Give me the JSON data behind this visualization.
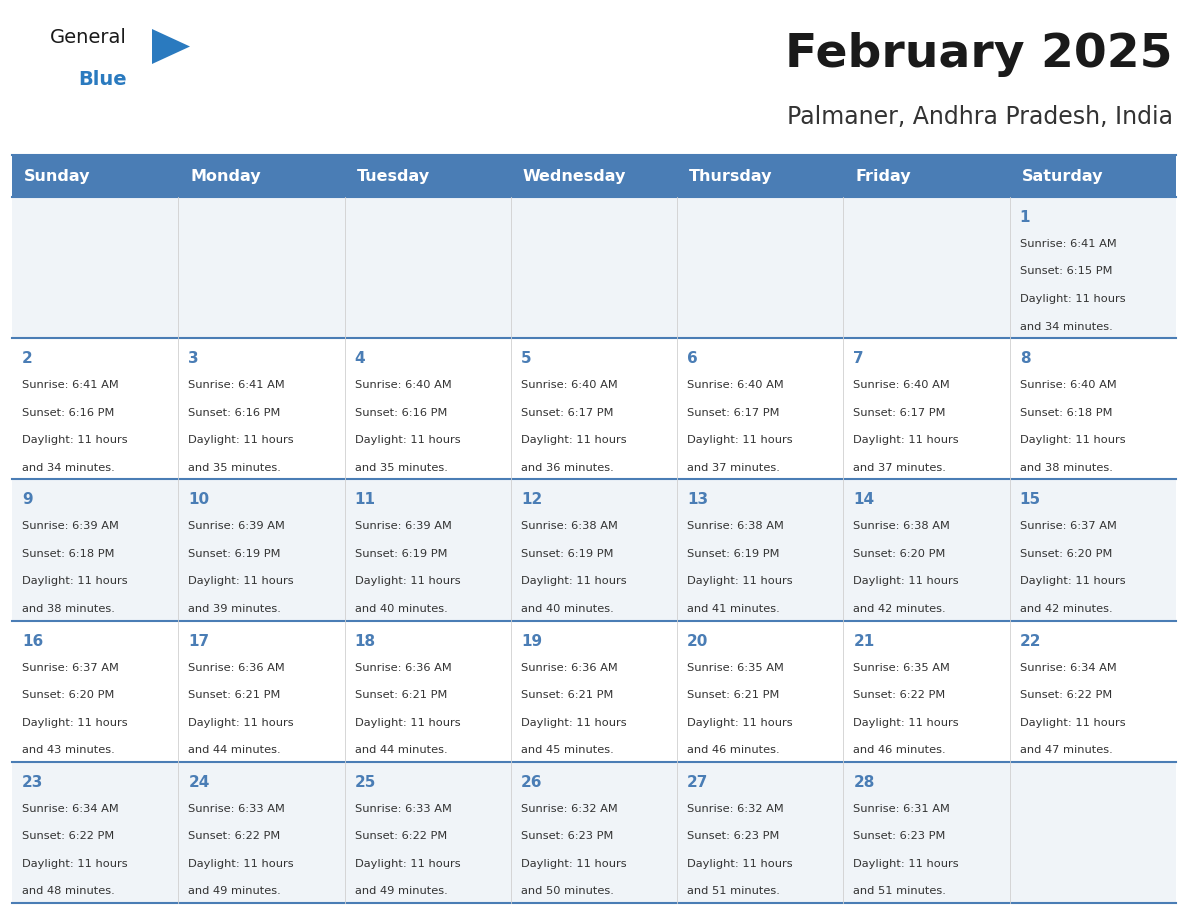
{
  "title": "February 2025",
  "subtitle": "Palmaner, Andhra Pradesh, India",
  "days_of_week": [
    "Sunday",
    "Monday",
    "Tuesday",
    "Wednesday",
    "Thursday",
    "Friday",
    "Saturday"
  ],
  "header_bg": "#4a7db5",
  "header_text": "#ffffff",
  "row_bg_light": "#f0f4f8",
  "row_bg_white": "#ffffff",
  "separator_color": "#4a7db5",
  "title_color": "#1a1a1a",
  "subtitle_color": "#333333",
  "day_number_color": "#4a7db5",
  "cell_text_color": "#333333",
  "logo_general_color": "#1a1a1a",
  "logo_blue_color": "#2a7abf",
  "logo_triangle_color": "#2a7abf",
  "calendar_data": [
    [
      null,
      null,
      null,
      null,
      null,
      null,
      {
        "day": "1",
        "sunrise": "6:41 AM",
        "sunset": "6:15 PM",
        "daylight": "11 hours",
        "daylight2": "and 34 minutes."
      }
    ],
    [
      {
        "day": "2",
        "sunrise": "6:41 AM",
        "sunset": "6:16 PM",
        "daylight": "11 hours",
        "daylight2": "and 34 minutes."
      },
      {
        "day": "3",
        "sunrise": "6:41 AM",
        "sunset": "6:16 PM",
        "daylight": "11 hours",
        "daylight2": "and 35 minutes."
      },
      {
        "day": "4",
        "sunrise": "6:40 AM",
        "sunset": "6:16 PM",
        "daylight": "11 hours",
        "daylight2": "and 35 minutes."
      },
      {
        "day": "5",
        "sunrise": "6:40 AM",
        "sunset": "6:17 PM",
        "daylight": "11 hours",
        "daylight2": "and 36 minutes."
      },
      {
        "day": "6",
        "sunrise": "6:40 AM",
        "sunset": "6:17 PM",
        "daylight": "11 hours",
        "daylight2": "and 37 minutes."
      },
      {
        "day": "7",
        "sunrise": "6:40 AM",
        "sunset": "6:17 PM",
        "daylight": "11 hours",
        "daylight2": "and 37 minutes."
      },
      {
        "day": "8",
        "sunrise": "6:40 AM",
        "sunset": "6:18 PM",
        "daylight": "11 hours",
        "daylight2": "and 38 minutes."
      }
    ],
    [
      {
        "day": "9",
        "sunrise": "6:39 AM",
        "sunset": "6:18 PM",
        "daylight": "11 hours",
        "daylight2": "and 38 minutes."
      },
      {
        "day": "10",
        "sunrise": "6:39 AM",
        "sunset": "6:19 PM",
        "daylight": "11 hours",
        "daylight2": "and 39 minutes."
      },
      {
        "day": "11",
        "sunrise": "6:39 AM",
        "sunset": "6:19 PM",
        "daylight": "11 hours",
        "daylight2": "and 40 minutes."
      },
      {
        "day": "12",
        "sunrise": "6:38 AM",
        "sunset": "6:19 PM",
        "daylight": "11 hours",
        "daylight2": "and 40 minutes."
      },
      {
        "day": "13",
        "sunrise": "6:38 AM",
        "sunset": "6:19 PM",
        "daylight": "11 hours",
        "daylight2": "and 41 minutes."
      },
      {
        "day": "14",
        "sunrise": "6:38 AM",
        "sunset": "6:20 PM",
        "daylight": "11 hours",
        "daylight2": "and 42 minutes."
      },
      {
        "day": "15",
        "sunrise": "6:37 AM",
        "sunset": "6:20 PM",
        "daylight": "11 hours",
        "daylight2": "and 42 minutes."
      }
    ],
    [
      {
        "day": "16",
        "sunrise": "6:37 AM",
        "sunset": "6:20 PM",
        "daylight": "11 hours",
        "daylight2": "and 43 minutes."
      },
      {
        "day": "17",
        "sunrise": "6:36 AM",
        "sunset": "6:21 PM",
        "daylight": "11 hours",
        "daylight2": "and 44 minutes."
      },
      {
        "day": "18",
        "sunrise": "6:36 AM",
        "sunset": "6:21 PM",
        "daylight": "11 hours",
        "daylight2": "and 44 minutes."
      },
      {
        "day": "19",
        "sunrise": "6:36 AM",
        "sunset": "6:21 PM",
        "daylight": "11 hours",
        "daylight2": "and 45 minutes."
      },
      {
        "day": "20",
        "sunrise": "6:35 AM",
        "sunset": "6:21 PM",
        "daylight": "11 hours",
        "daylight2": "and 46 minutes."
      },
      {
        "day": "21",
        "sunrise": "6:35 AM",
        "sunset": "6:22 PM",
        "daylight": "11 hours",
        "daylight2": "and 46 minutes."
      },
      {
        "day": "22",
        "sunrise": "6:34 AM",
        "sunset": "6:22 PM",
        "daylight": "11 hours",
        "daylight2": "and 47 minutes."
      }
    ],
    [
      {
        "day": "23",
        "sunrise": "6:34 AM",
        "sunset": "6:22 PM",
        "daylight": "11 hours",
        "daylight2": "and 48 minutes."
      },
      {
        "day": "24",
        "sunrise": "6:33 AM",
        "sunset": "6:22 PM",
        "daylight": "11 hours",
        "daylight2": "and 49 minutes."
      },
      {
        "day": "25",
        "sunrise": "6:33 AM",
        "sunset": "6:22 PM",
        "daylight": "11 hours",
        "daylight2": "and 49 minutes."
      },
      {
        "day": "26",
        "sunrise": "6:32 AM",
        "sunset": "6:23 PM",
        "daylight": "11 hours",
        "daylight2": "and 50 minutes."
      },
      {
        "day": "27",
        "sunrise": "6:32 AM",
        "sunset": "6:23 PM",
        "daylight": "11 hours",
        "daylight2": "and 51 minutes."
      },
      {
        "day": "28",
        "sunrise": "6:31 AM",
        "sunset": "6:23 PM",
        "daylight": "11 hours",
        "daylight2": "and 51 minutes."
      },
      null
    ]
  ]
}
